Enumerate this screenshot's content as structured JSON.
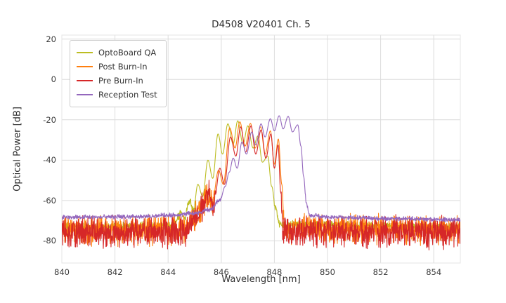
{
  "chart_data": {
    "type": "line",
    "title": "D4508 V20401 Ch. 5",
    "xlabel": "Wavelength [nm]",
    "ylabel": "Optical Power [dB]",
    "xlim": [
      840,
      855
    ],
    "ylim": [
      -91,
      22
    ],
    "xticks": [
      840,
      842,
      844,
      846,
      848,
      850,
      852,
      854
    ],
    "yticks": [
      20,
      0,
      -20,
      -40,
      -60,
      -80
    ],
    "grid": true,
    "legend_position": "upper left",
    "colors": {
      "background": "#ffffff",
      "grid": "#dcdcdc",
      "frame": "#e4e4e4",
      "text": "#2f2f2f",
      "tick_text": "#3a3a3a"
    },
    "series": [
      {
        "name": "OptoBoard QA",
        "color": "#bcbd22",
        "noise_amp": 2.3,
        "noise_below": -60,
        "anchors": [
          [
            840,
            -73
          ],
          [
            844.15,
            -72.5
          ],
          [
            844.5,
            -66.5
          ],
          [
            844.62,
            -69
          ],
          [
            844.8,
            -60
          ],
          [
            844.95,
            -65
          ],
          [
            845.12,
            -52
          ],
          [
            845.3,
            -58
          ],
          [
            845.5,
            -40
          ],
          [
            845.68,
            -49
          ],
          [
            845.88,
            -27
          ],
          [
            846.05,
            -37
          ],
          [
            846.25,
            -22
          ],
          [
            846.45,
            -32
          ],
          [
            846.62,
            -20.5
          ],
          [
            846.82,
            -32
          ],
          [
            847.0,
            -23
          ],
          [
            847.2,
            -34
          ],
          [
            847.38,
            -28
          ],
          [
            847.55,
            -41
          ],
          [
            847.75,
            -38
          ],
          [
            847.9,
            -53
          ],
          [
            848.05,
            -64
          ],
          [
            848.2,
            -72
          ],
          [
            855,
            -73
          ]
        ]
      },
      {
        "name": "Post Burn-In",
        "color": "#ff7f0e",
        "noise_amp": 8.5,
        "noise_below": -57,
        "anchors": [
          [
            840,
            -75
          ],
          [
            844.6,
            -74.5
          ],
          [
            845.0,
            -69
          ],
          [
            845.2,
            -64
          ],
          [
            845.45,
            -58
          ],
          [
            845.65,
            -62
          ],
          [
            845.9,
            -45
          ],
          [
            846.08,
            -52
          ],
          [
            846.32,
            -24
          ],
          [
            846.52,
            -34
          ],
          [
            846.7,
            -21
          ],
          [
            846.9,
            -33
          ],
          [
            847.1,
            -21.8
          ],
          [
            847.28,
            -34
          ],
          [
            847.48,
            -23.5
          ],
          [
            847.65,
            -37
          ],
          [
            847.85,
            -25.5
          ],
          [
            848.0,
            -42
          ],
          [
            848.15,
            -29.5
          ],
          [
            848.28,
            -52
          ],
          [
            848.38,
            -74
          ],
          [
            855,
            -75
          ]
        ]
      },
      {
        "name": "Pre Burn-In",
        "color": "#d62728",
        "noise_amp": 9,
        "noise_below": -57,
        "anchors": [
          [
            840,
            -76
          ],
          [
            844.7,
            -75.5
          ],
          [
            845.05,
            -68
          ],
          [
            845.3,
            -62
          ],
          [
            845.52,
            -57
          ],
          [
            845.72,
            -62
          ],
          [
            845.95,
            -44
          ],
          [
            846.12,
            -52
          ],
          [
            846.35,
            -28.5
          ],
          [
            846.55,
            -38
          ],
          [
            846.73,
            -23.5
          ],
          [
            846.92,
            -36
          ],
          [
            847.12,
            -23
          ],
          [
            847.3,
            -37
          ],
          [
            847.5,
            -25
          ],
          [
            847.68,
            -39
          ],
          [
            847.87,
            -27
          ],
          [
            848.0,
            -44
          ],
          [
            848.14,
            -32.5
          ],
          [
            848.24,
            -56
          ],
          [
            848.33,
            -75
          ],
          [
            855,
            -76
          ]
        ]
      },
      {
        "name": "Reception Test",
        "color": "#9467bd",
        "noise_amp": 1.3,
        "noise_below": -58,
        "anchors": [
          [
            840,
            -68.3
          ],
          [
            843.0,
            -68
          ],
          [
            844.3,
            -67.2
          ],
          [
            845.0,
            -66.3
          ],
          [
            845.6,
            -64.5
          ],
          [
            845.95,
            -60
          ],
          [
            846.15,
            -53
          ],
          [
            846.3,
            -46
          ],
          [
            846.45,
            -39
          ],
          [
            846.6,
            -44
          ],
          [
            846.78,
            -31
          ],
          [
            846.95,
            -37
          ],
          [
            847.15,
            -26
          ],
          [
            847.3,
            -32.5
          ],
          [
            847.5,
            -22
          ],
          [
            847.65,
            -28.5
          ],
          [
            847.85,
            -19.5
          ],
          [
            848.0,
            -25.5
          ],
          [
            848.18,
            -18
          ],
          [
            848.33,
            -24.5
          ],
          [
            848.52,
            -18.3
          ],
          [
            848.68,
            -26
          ],
          [
            848.88,
            -22.5
          ],
          [
            849.0,
            -33
          ],
          [
            849.1,
            -48
          ],
          [
            849.2,
            -61
          ],
          [
            849.32,
            -67.5
          ],
          [
            850.2,
            -68.3
          ],
          [
            852.5,
            -69
          ],
          [
            855,
            -69.6
          ]
        ]
      }
    ]
  }
}
